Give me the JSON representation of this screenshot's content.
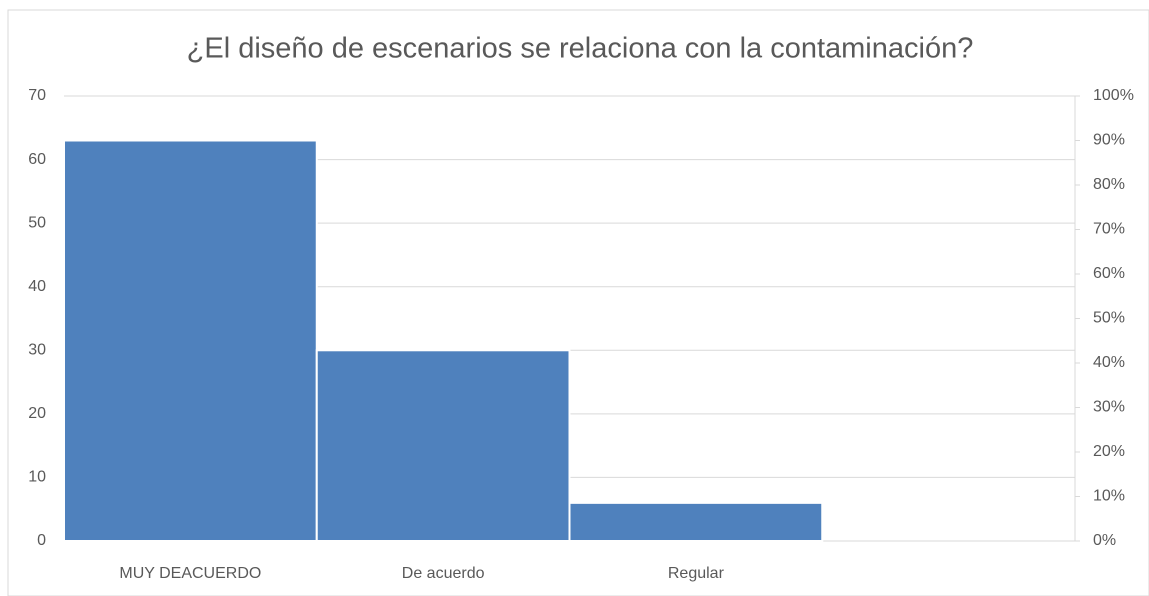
{
  "chart_data": {
    "type": "bar",
    "title": "¿El diseño de escenarios se relaciona con la contaminación?",
    "categories": [
      "MUY DEACUERDO",
      "De acuerdo",
      "Regular",
      null
    ],
    "values": [
      63,
      30,
      6,
      null
    ],
    "color": "#4f81bd",
    "ylim": [
      0,
      70
    ],
    "yticks": [
      0,
      10,
      20,
      30,
      40,
      50,
      60,
      70
    ],
    "y2lim": [
      0,
      100
    ],
    "y2ticks": [
      {
        "value": 0,
        "label": "0%"
      },
      {
        "value": 10,
        "label": "10%"
      },
      {
        "value": 20,
        "label": "20%"
      },
      {
        "value": 30,
        "label": "30%"
      },
      {
        "value": 40,
        "label": "40%"
      },
      {
        "value": 50,
        "label": "50%"
      },
      {
        "value": 60,
        "label": "60%"
      },
      {
        "value": 70,
        "label": "70%"
      },
      {
        "value": 80,
        "label": "80%"
      },
      {
        "value": 90,
        "label": "90%"
      },
      {
        "value": 100,
        "label": "100%"
      }
    ],
    "grid": true
  }
}
